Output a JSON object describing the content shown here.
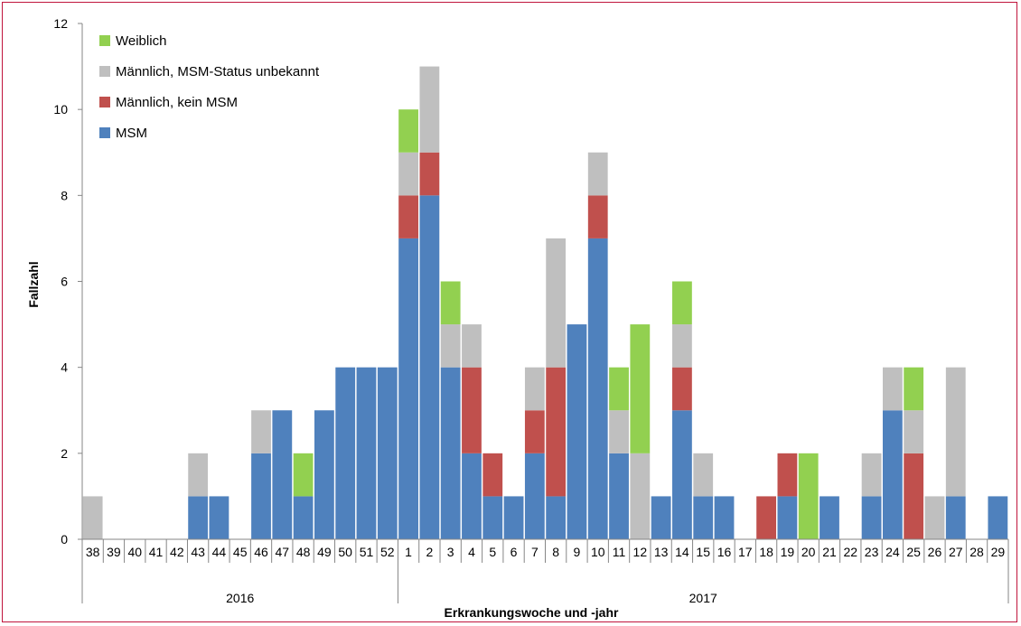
{
  "chart_data": {
    "type": "bar",
    "stacked": true,
    "ylabel": "Fallzahl",
    "xlabel": "Erkrankungswoche und -jahr",
    "ylim": [
      0,
      12
    ],
    "yticks": [
      0,
      2,
      4,
      6,
      8,
      10,
      12
    ],
    "grid": false,
    "legend_position": "top-left",
    "categories": [
      "38",
      "39",
      "40",
      "41",
      "42",
      "43",
      "44",
      "45",
      "46",
      "47",
      "48",
      "49",
      "50",
      "51",
      "52",
      "1",
      "2",
      "3",
      "4",
      "5",
      "6",
      "7",
      "8",
      "9",
      "10",
      "11",
      "12",
      "13",
      "14",
      "15",
      "16",
      "17",
      "18",
      "19",
      "20",
      "21",
      "22",
      "23",
      "24",
      "25",
      "26",
      "27",
      "28",
      "29"
    ],
    "year_groups": [
      {
        "label": "2016",
        "from": "38",
        "to": "52"
      },
      {
        "label": "2017",
        "from": "1",
        "to": "29"
      }
    ],
    "series": [
      {
        "name": "MSM",
        "color": "#4f81bd",
        "values": [
          0,
          0,
          0,
          0,
          0,
          1,
          1,
          0,
          2,
          3,
          1,
          3,
          4,
          4,
          4,
          7,
          8,
          4,
          2,
          1,
          1,
          2,
          1,
          5,
          7,
          2,
          0,
          1,
          3,
          1,
          1,
          0,
          0,
          1,
          0,
          1,
          0,
          1,
          3,
          0,
          0,
          1,
          0,
          1
        ]
      },
      {
        "name": "Männlich, kein MSM",
        "color": "#c0504d",
        "values": [
          0,
          0,
          0,
          0,
          0,
          0,
          0,
          0,
          0,
          0,
          0,
          0,
          0,
          0,
          0,
          1,
          1,
          0,
          2,
          1,
          0,
          1,
          3,
          0,
          1,
          0,
          0,
          0,
          1,
          0,
          0,
          0,
          1,
          1,
          0,
          0,
          0,
          0,
          0,
          2,
          0,
          0,
          0,
          0
        ]
      },
      {
        "name": "Männlich, MSM-Status unbekannt",
        "color": "#bfbfbf",
        "values": [
          1,
          0,
          0,
          0,
          0,
          1,
          0,
          0,
          1,
          0,
          0,
          0,
          0,
          0,
          0,
          1,
          2,
          1,
          1,
          0,
          0,
          1,
          3,
          0,
          1,
          1,
          2,
          0,
          1,
          1,
          0,
          0,
          0,
          0,
          0,
          0,
          0,
          1,
          1,
          1,
          1,
          3,
          0,
          0
        ]
      },
      {
        "name": "Weiblich",
        "color": "#92d050",
        "values": [
          0,
          0,
          0,
          0,
          0,
          0,
          0,
          0,
          0,
          0,
          1,
          0,
          0,
          0,
          0,
          1,
          0,
          1,
          0,
          0,
          0,
          0,
          0,
          0,
          0,
          1,
          3,
          0,
          1,
          0,
          0,
          0,
          0,
          0,
          2,
          0,
          0,
          0,
          0,
          1,
          0,
          0,
          0,
          0
        ]
      }
    ],
    "legend_order": [
      "Weiblich",
      "Männlich, MSM-Status unbekannt",
      "Männlich, kein MSM",
      "MSM"
    ]
  }
}
